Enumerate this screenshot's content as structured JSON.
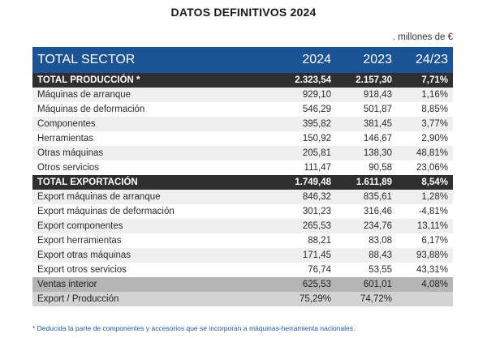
{
  "title": "DATOS DEFINITIVOS 2024",
  "units": ". millones de €",
  "header": {
    "label": "TOTAL SECTOR",
    "y1": "2024",
    "y2": "2023",
    "var": "24/23"
  },
  "produccion": {
    "total": {
      "label": "TOTAL PRODUCCIÓN *",
      "y1": "2.323,54",
      "y2": "2.157,30",
      "var": "7,71%"
    },
    "rows": [
      {
        "label": "Máquinas de arranque",
        "y1": "929,10",
        "y2": "918,43",
        "var": "1,16%"
      },
      {
        "label": "Máquinas de deformación",
        "y1": "546,29",
        "y2": "501,87",
        "var": "8,85%"
      },
      {
        "label": "Componentes",
        "y1": "395,82",
        "y2": "381,45",
        "var": "3,77%"
      },
      {
        "label": "Herramientas",
        "y1": "150,92",
        "y2": "146,67",
        "var": "2,90%"
      },
      {
        "label": "Otras máquinas",
        "y1": "205,81",
        "y2": "138,30",
        "var": "48,81%"
      },
      {
        "label": "Otros servicios",
        "y1": "111,47",
        "y2": "90,58",
        "var": "23,06%"
      }
    ]
  },
  "exportacion": {
    "total": {
      "label": "TOTAL EXPORTACIÓN",
      "y1": "1.749,48",
      "y2": "1.611,89",
      "var": "8,54%"
    },
    "rows": [
      {
        "label": "Export máquinas de arranque",
        "y1": "846,32",
        "y2": "835,61",
        "var": "1,28%"
      },
      {
        "label": "Export máquinas de deformación",
        "y1": "301,23",
        "y2": "316,46",
        "var": "-4,81%"
      },
      {
        "label": "Export componentes",
        "y1": "265,53",
        "y2": "234,76",
        "var": "13,11%"
      },
      {
        "label": "Export herramientas",
        "y1": "88,21",
        "y2": "83,08",
        "var": "6,17%"
      },
      {
        "label": "Export otras máquinas",
        "y1": "171,45",
        "y2": "88,43",
        "var": "93,88%"
      },
      {
        "label": "Export otros servicios",
        "y1": "76,74",
        "y2": "53,55",
        "var": "43,31%"
      }
    ]
  },
  "ventas": {
    "label": "Ventas interior",
    "y1": "625,53",
    "y2": "601,01",
    "var": "4,08%"
  },
  "ratio": {
    "label": "Export / Producción",
    "y1": "75,29%",
    "y2": "74,72%",
    "var": ""
  },
  "footnote": "* Deducida la parte de componentes y accesorios que se incorporan a máquinas-herramienta nacionales."
}
